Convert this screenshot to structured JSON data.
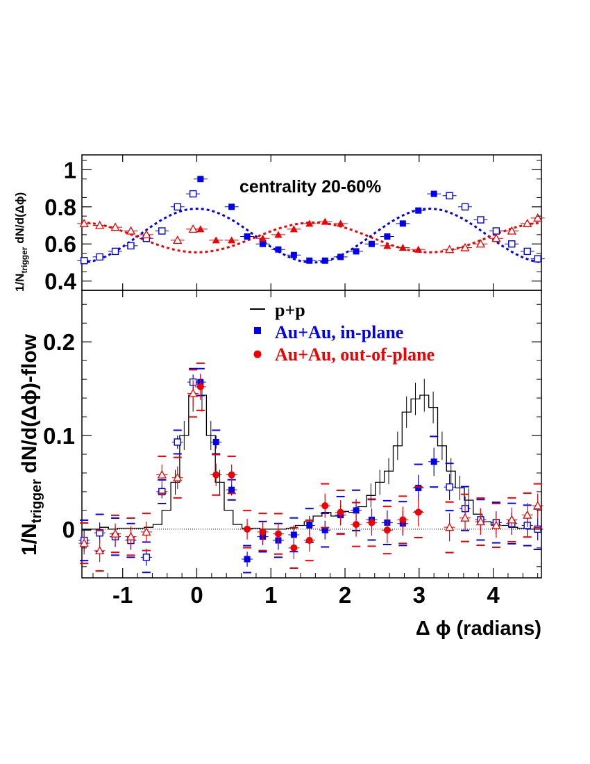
{
  "chart_data": [
    {
      "type": "scatter",
      "panel": "top",
      "title": "centrality 20-60%",
      "ylabel_main": "1/N",
      "ylabel_sub": "trigger",
      "ylabel_rest": " dN/d(Δϕ)",
      "xlim": [
        -1.55,
        4.65
      ],
      "ylim": [
        0.35,
        1.08
      ],
      "yticks": [
        "1",
        "0.8",
        "0.6",
        "0.4"
      ],
      "ytick_values": [
        1.0,
        0.8,
        0.6,
        0.4
      ],
      "series": [
        {
          "name": "in-plane (filled)",
          "color": "#0000ee",
          "marker": "square-filled",
          "x": [
            0.05,
            0.47,
            0.68,
            0.89,
            1.1,
            1.31,
            1.52,
            1.73,
            1.94,
            2.15,
            2.36,
            2.57,
            2.78,
            2.99,
            3.2
          ],
          "y": [
            0.95,
            0.8,
            0.64,
            0.6,
            0.57,
            0.54,
            0.51,
            0.51,
            0.53,
            0.56,
            0.6,
            0.64,
            0.71,
            0.78,
            0.87
          ]
        },
        {
          "name": "in-plane (reflected, open)",
          "color": "#0000ee",
          "marker": "square-open",
          "x": [
            -1.52,
            -1.31,
            -1.1,
            -0.89,
            -0.68,
            -0.47,
            -0.26,
            -0.05,
            3.41,
            3.62,
            3.83,
            4.04,
            4.25,
            4.46,
            4.6
          ],
          "y": [
            0.51,
            0.53,
            0.56,
            0.59,
            0.63,
            0.67,
            0.8,
            0.87,
            0.86,
            0.8,
            0.73,
            0.67,
            0.6,
            0.56,
            0.52
          ]
        },
        {
          "name": "out-of-plane (filled)",
          "color": "#ee0000",
          "marker": "triangle-filled",
          "x": [
            0.05,
            0.26,
            0.47,
            0.89,
            1.1,
            1.31,
            1.52,
            1.73,
            1.94,
            2.57,
            2.78,
            2.99
          ],
          "y": [
            0.68,
            0.62,
            0.62,
            0.63,
            0.65,
            0.68,
            0.71,
            0.72,
            0.71,
            0.59,
            0.58,
            0.57
          ]
        },
        {
          "name": "out-of-plane (reflected, open)",
          "color": "#ee0000",
          "marker": "triangle-open",
          "x": [
            -1.52,
            -1.31,
            -1.1,
            -0.89,
            -0.68,
            -0.26,
            -0.05,
            3.41,
            3.62,
            3.83,
            4.04,
            4.25,
            4.46,
            4.6
          ],
          "y": [
            0.71,
            0.7,
            0.69,
            0.67,
            0.65,
            0.62,
            0.68,
            0.57,
            0.58,
            0.6,
            0.63,
            0.67,
            0.71,
            0.74
          ]
        }
      ],
      "flow_curves": [
        {
          "name": "in-plane flow",
          "color": "#0000ee",
          "mean": 0.645,
          "amplitude": 0.145
        },
        {
          "name": "out-of-plane flow",
          "color": "#ee0000",
          "mean": 0.635,
          "amplitude": -0.08
        }
      ]
    },
    {
      "type": "scatter",
      "panel": "bottom",
      "xlabel": "Δ ϕ (radians)",
      "ylabel_main": "1/N",
      "ylabel_sub": "trigger",
      "ylabel_rest": " dN/d(Δϕ)-flow",
      "xlim": [
        -1.55,
        4.65
      ],
      "ylim": [
        -0.052,
        0.255
      ],
      "yticks": [
        "0.2",
        "0.1",
        "0"
      ],
      "ytick_values": [
        0.2,
        0.1,
        0.0
      ],
      "xticks": [
        "-1",
        "0",
        "1",
        "2",
        "3",
        "4"
      ],
      "xtick_values": [
        -1,
        0,
        1,
        2,
        3,
        4
      ],
      "legend": [
        {
          "label": "p+p",
          "color": "#000000",
          "marker": "line"
        },
        {
          "label": "Au+Au, in-plane",
          "color": "#0000ee",
          "marker": "square"
        },
        {
          "label": "Au+Au, out-of-plane",
          "color": "#ee0000",
          "marker": "circle"
        }
      ],
      "series": [
        {
          "name": "p+p",
          "type": "step",
          "color": "#000000",
          "x": [
            -1.55,
            -1.43,
            -1.31,
            -1.19,
            -1.07,
            -0.95,
            -0.83,
            -0.71,
            -0.59,
            -0.47,
            -0.35,
            -0.23,
            -0.11,
            0.01,
            0.13,
            0.25,
            0.37,
            0.49,
            0.61,
            0.73,
            0.85,
            0.97,
            1.09,
            1.21,
            1.33,
            1.45,
            1.57,
            1.69,
            1.81,
            1.93,
            2.05,
            2.17,
            2.29,
            2.41,
            2.53,
            2.65,
            2.77,
            2.89,
            3.01,
            3.13,
            3.25,
            3.37,
            3.49,
            3.61,
            3.73,
            3.85,
            3.97,
            4.09,
            4.21,
            4.33,
            4.45,
            4.57
          ],
          "y": [
            -0.001,
            0.0,
            0.002,
            0.0,
            0.001,
            0.001,
            0.001,
            0.002,
            0.005,
            0.02,
            0.05,
            0.1,
            0.143,
            0.143,
            0.1,
            0.05,
            0.02,
            0.005,
            0.001,
            0.001,
            0.0,
            0.0,
            0.0,
            0.001,
            0.004,
            0.008,
            0.014,
            0.018,
            0.014,
            0.019,
            0.018,
            0.024,
            0.036,
            0.05,
            0.062,
            0.089,
            0.125,
            0.139,
            0.143,
            0.13,
            0.089,
            0.062,
            0.044,
            0.031,
            0.016,
            0.008,
            0.005,
            0.004,
            0.002,
            0.001,
            0.0,
            -0.001
          ]
        },
        {
          "name": "Au+Au, in-plane (filled)",
          "color": "#0000ee",
          "marker": "square-filled",
          "x": [
            0.05,
            0.26,
            0.47,
            0.68,
            0.89,
            1.1,
            1.31,
            1.52,
            1.73,
            1.94,
            2.15,
            2.36,
            2.57,
            2.78,
            2.99,
            3.2
          ],
          "y": [
            0.157,
            0.093,
            0.042,
            -0.032,
            -0.008,
            -0.012,
            -0.006,
            0.004,
            -0.001,
            0.015,
            0.02,
            0.01,
            0.007,
            0.006,
            0.044,
            0.072
          ],
          "err": [
            0.008,
            0.007,
            0.006,
            0.008,
            0.009,
            0.01,
            0.01,
            0.01,
            0.01,
            0.011,
            0.012,
            0.012,
            0.013,
            0.013,
            0.014,
            0.015
          ]
        },
        {
          "name": "Au+Au, in-plane (reflected, open)",
          "color": "#0000ee",
          "marker": "square-open",
          "x": [
            -1.52,
            -1.31,
            -1.1,
            -0.89,
            -0.68,
            -0.47,
            -0.26,
            -0.05,
            3.41,
            3.62,
            3.83,
            4.04,
            4.25,
            4.46,
            4.6
          ],
          "y": [
            -0.012,
            -0.004,
            -0.008,
            -0.012,
            -0.03,
            0.04,
            0.093,
            0.157,
            0.045,
            0.022,
            0.01,
            0.007,
            0.006,
            0.004,
            0.0
          ],
          "err": [
            0.012,
            0.011,
            0.011,
            0.01,
            0.009,
            0.007,
            0.007,
            0.008,
            0.014,
            0.013,
            0.012,
            0.012,
            0.012,
            0.012,
            0.012
          ]
        },
        {
          "name": "Au+Au, out-of-plane (filled)",
          "color": "#ee0000",
          "marker": "circle-filled",
          "x": [
            0.05,
            0.26,
            0.47,
            0.68,
            0.89,
            1.1,
            1.31,
            1.52,
            1.73,
            1.94,
            2.15,
            2.36,
            2.57,
            2.78,
            2.99
          ],
          "y": [
            0.152,
            0.058,
            0.058,
            0.0,
            -0.003,
            -0.005,
            -0.02,
            -0.012,
            0.025,
            0.018,
            0.005,
            0.007,
            -0.001,
            0.01,
            0.018
          ],
          "err": [
            0.014,
            0.012,
            0.011,
            0.011,
            0.011,
            0.012,
            0.012,
            0.012,
            0.013,
            0.013,
            0.013,
            0.014,
            0.014,
            0.014,
            0.015
          ]
        },
        {
          "name": "Au+Au, out-of-plane (reflected, open)",
          "color": "#ee0000",
          "marker": "triangle-open",
          "x": [
            -1.52,
            -1.31,
            -1.1,
            -0.89,
            -0.68,
            -0.47,
            -0.26,
            -0.05,
            3.41,
            3.62,
            3.83,
            4.04,
            4.25,
            4.46,
            4.6
          ],
          "y": [
            -0.015,
            -0.023,
            -0.005,
            -0.008,
            -0.003,
            0.058,
            0.055,
            0.145,
            0.002,
            0.012,
            0.008,
            0.004,
            0.01,
            0.015,
            0.025
          ],
          "err": [
            0.012,
            0.012,
            0.011,
            0.011,
            0.011,
            0.011,
            0.012,
            0.014,
            0.015,
            0.014,
            0.014,
            0.013,
            0.013,
            0.013,
            0.013
          ]
        }
      ]
    }
  ]
}
